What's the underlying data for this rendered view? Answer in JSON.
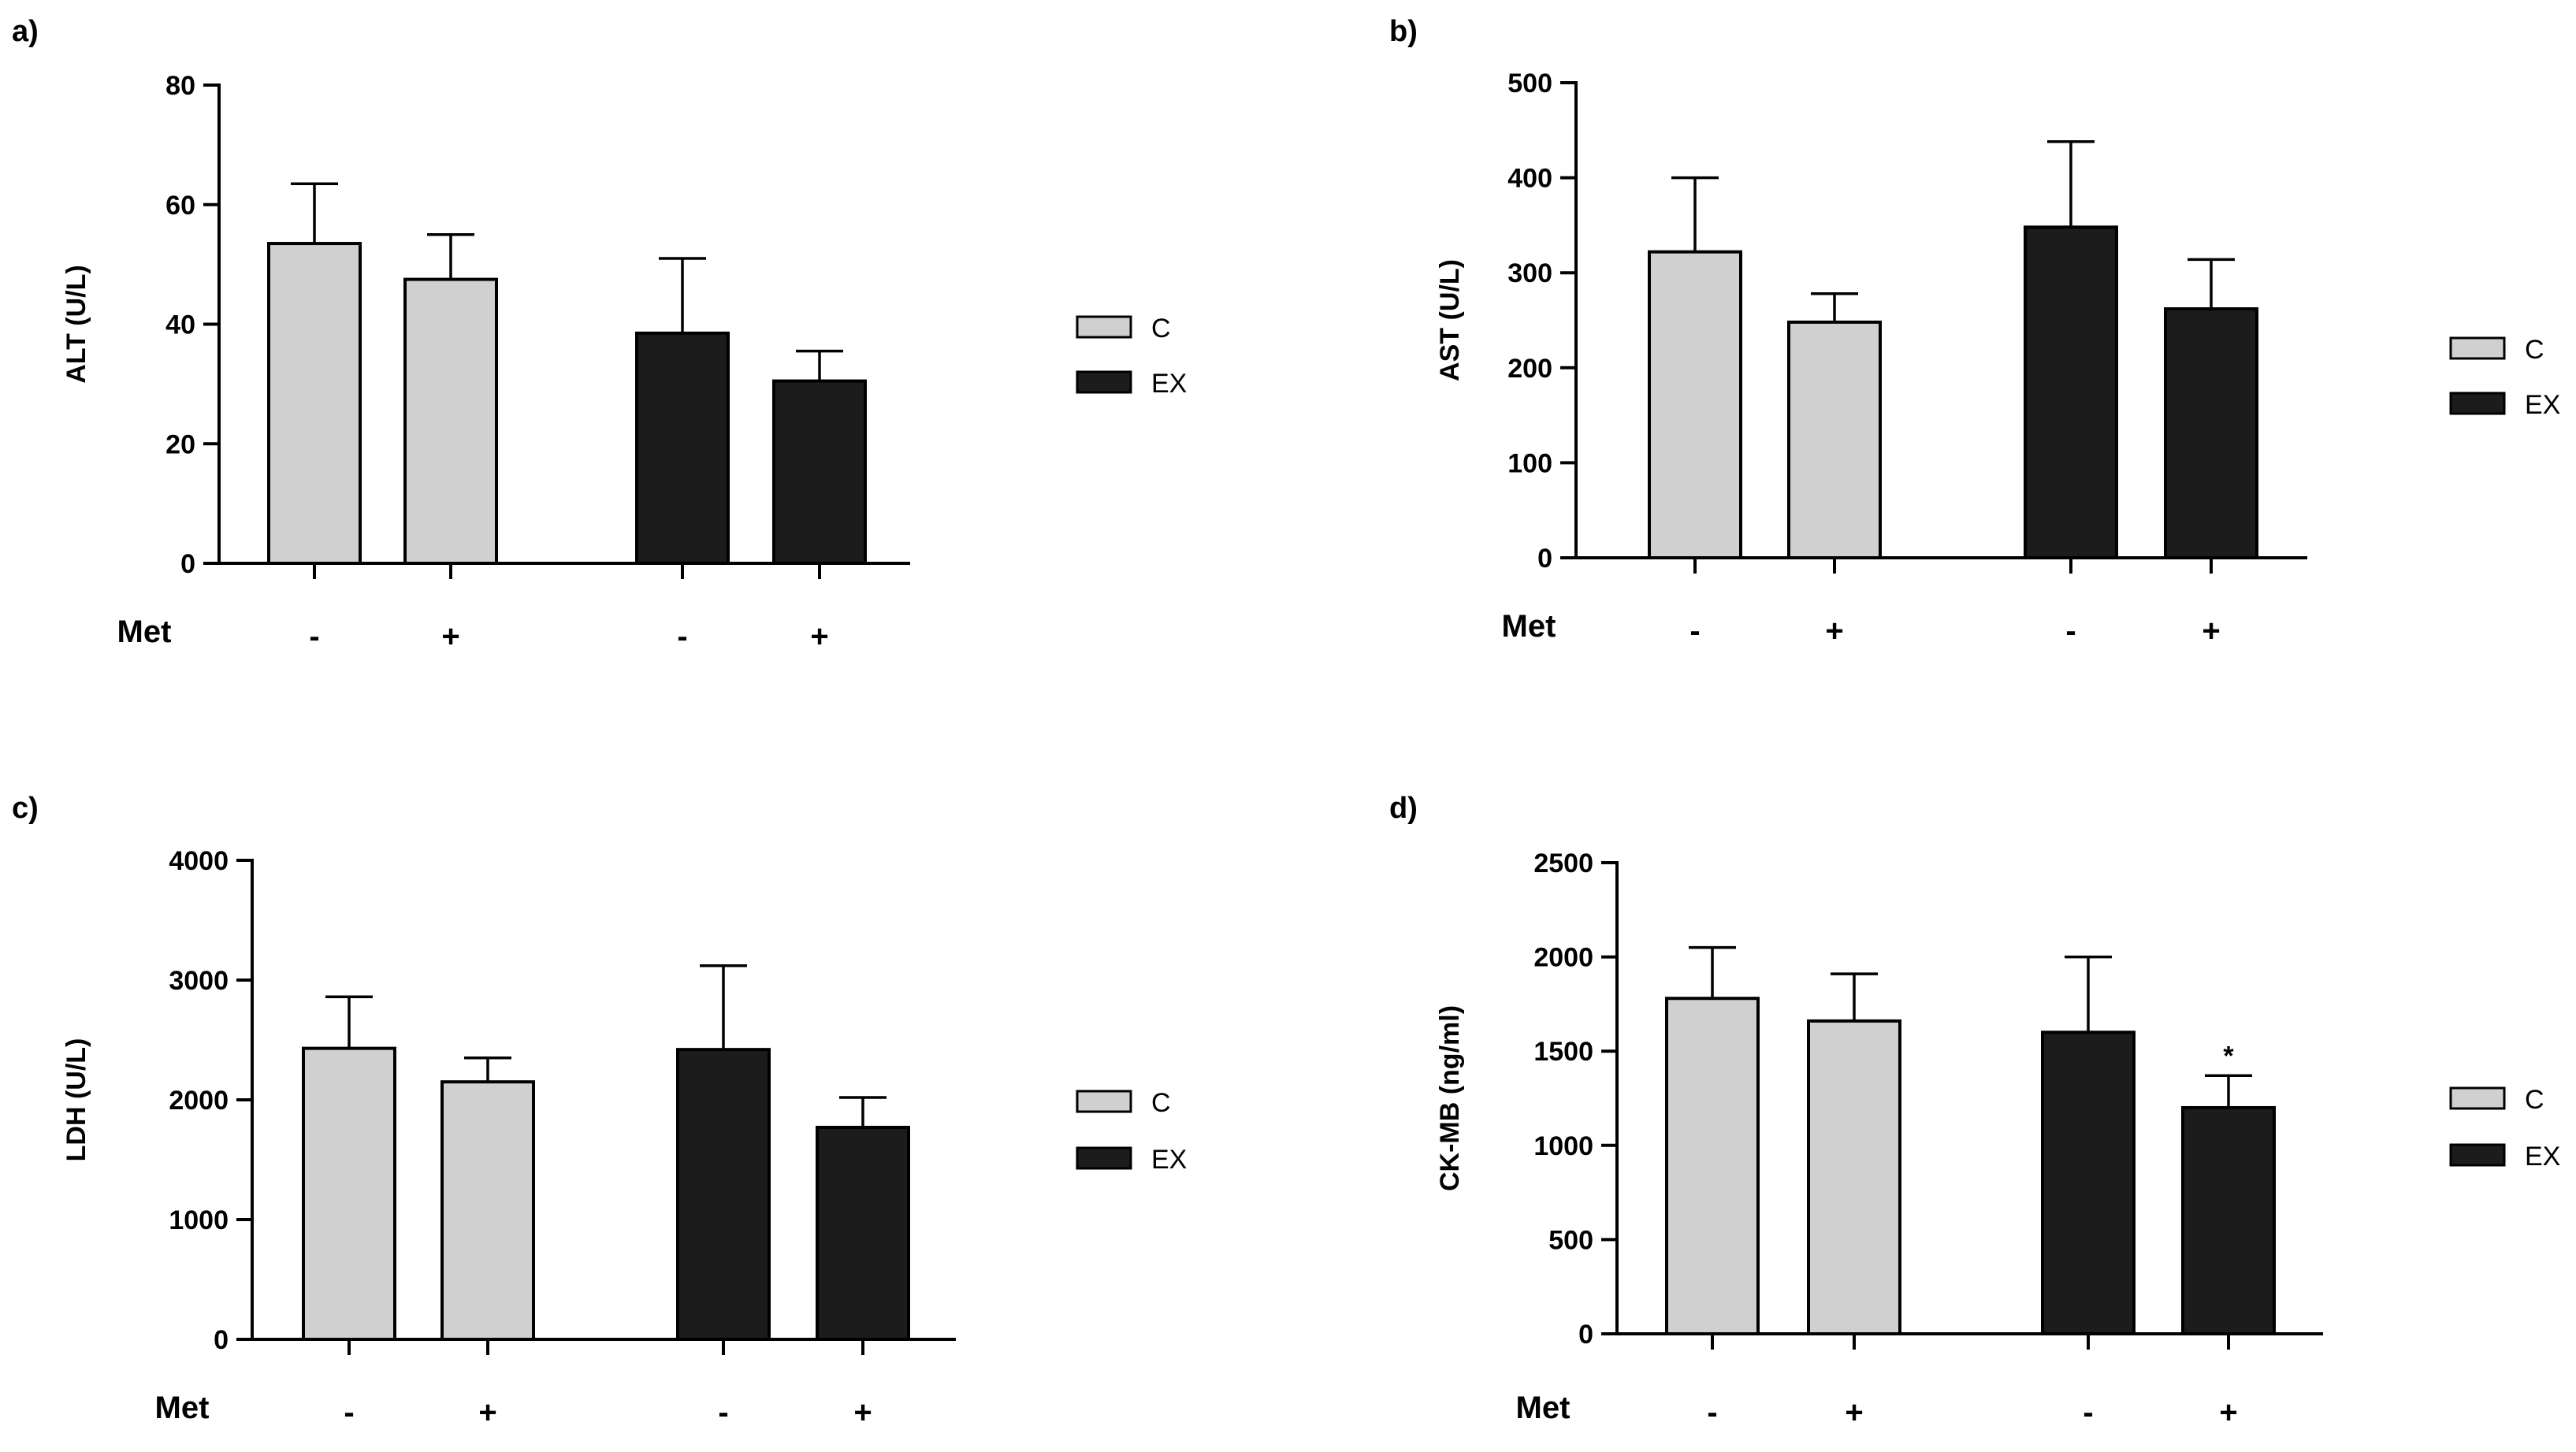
{
  "chart_data": [
    {
      "type": "bar",
      "panel": "a)",
      "ylabel": "ALT (U/L)",
      "ylim": [
        0,
        80
      ],
      "yticks": [
        0,
        20,
        40,
        60,
        80
      ],
      "row_label": "Met",
      "categories": [
        "-",
        "+",
        "-",
        "+"
      ],
      "groups": [
        "C",
        "C",
        "EX",
        "EX"
      ],
      "values": [
        53.5,
        47.5,
        38.5,
        30.5
      ],
      "errors": [
        10,
        7.5,
        12.5,
        5
      ],
      "annotations": [
        "",
        "",
        "",
        ""
      ],
      "legend": [
        "C",
        "EX"
      ],
      "legend_position": "right"
    },
    {
      "type": "bar",
      "panel": "b)",
      "ylabel": "AST (U/L)",
      "ylim": [
        0,
        500
      ],
      "yticks": [
        0,
        100,
        200,
        300,
        400,
        500
      ],
      "row_label": "Met",
      "categories": [
        "-",
        "+",
        "-",
        "+"
      ],
      "groups": [
        "C",
        "C",
        "EX",
        "EX"
      ],
      "values": [
        322,
        248,
        348,
        262
      ],
      "errors": [
        78,
        30,
        90,
        52
      ],
      "annotations": [
        "",
        "",
        "",
        ""
      ],
      "legend": [
        "C",
        "EX"
      ],
      "legend_position": "right"
    },
    {
      "type": "bar",
      "panel": "c)",
      "ylabel": "LDH (U/L)",
      "ylim": [
        0,
        4000
      ],
      "yticks": [
        0,
        1000,
        2000,
        3000,
        4000
      ],
      "row_label": "Met",
      "categories": [
        "-",
        "+",
        "-",
        "+"
      ],
      "groups": [
        "C",
        "C",
        "EX",
        "EX"
      ],
      "values": [
        2430,
        2150,
        2420,
        1770
      ],
      "errors": [
        430,
        200,
        700,
        250
      ],
      "annotations": [
        "",
        "",
        "",
        ""
      ],
      "legend": [
        "C",
        "EX"
      ],
      "legend_position": "right"
    },
    {
      "type": "bar",
      "panel": "d)",
      "ylabel": "CK-MB (ng/ml)",
      "ylim": [
        0,
        2500
      ],
      "yticks": [
        0,
        500,
        1000,
        1500,
        2000,
        2500
      ],
      "row_label": "Met",
      "categories": [
        "-",
        "+",
        "-",
        "+"
      ],
      "groups": [
        "C",
        "C",
        "EX",
        "EX"
      ],
      "values": [
        1780,
        1660,
        1600,
        1200
      ],
      "errors": [
        270,
        250,
        400,
        170
      ],
      "annotations": [
        "",
        "",
        "",
        "*"
      ],
      "legend": [
        "C",
        "EX"
      ],
      "legend_position": "right"
    }
  ],
  "colors": {
    "C": "#d0d0d0",
    "EX": "#1c1c1c",
    "axis": "#000000"
  }
}
